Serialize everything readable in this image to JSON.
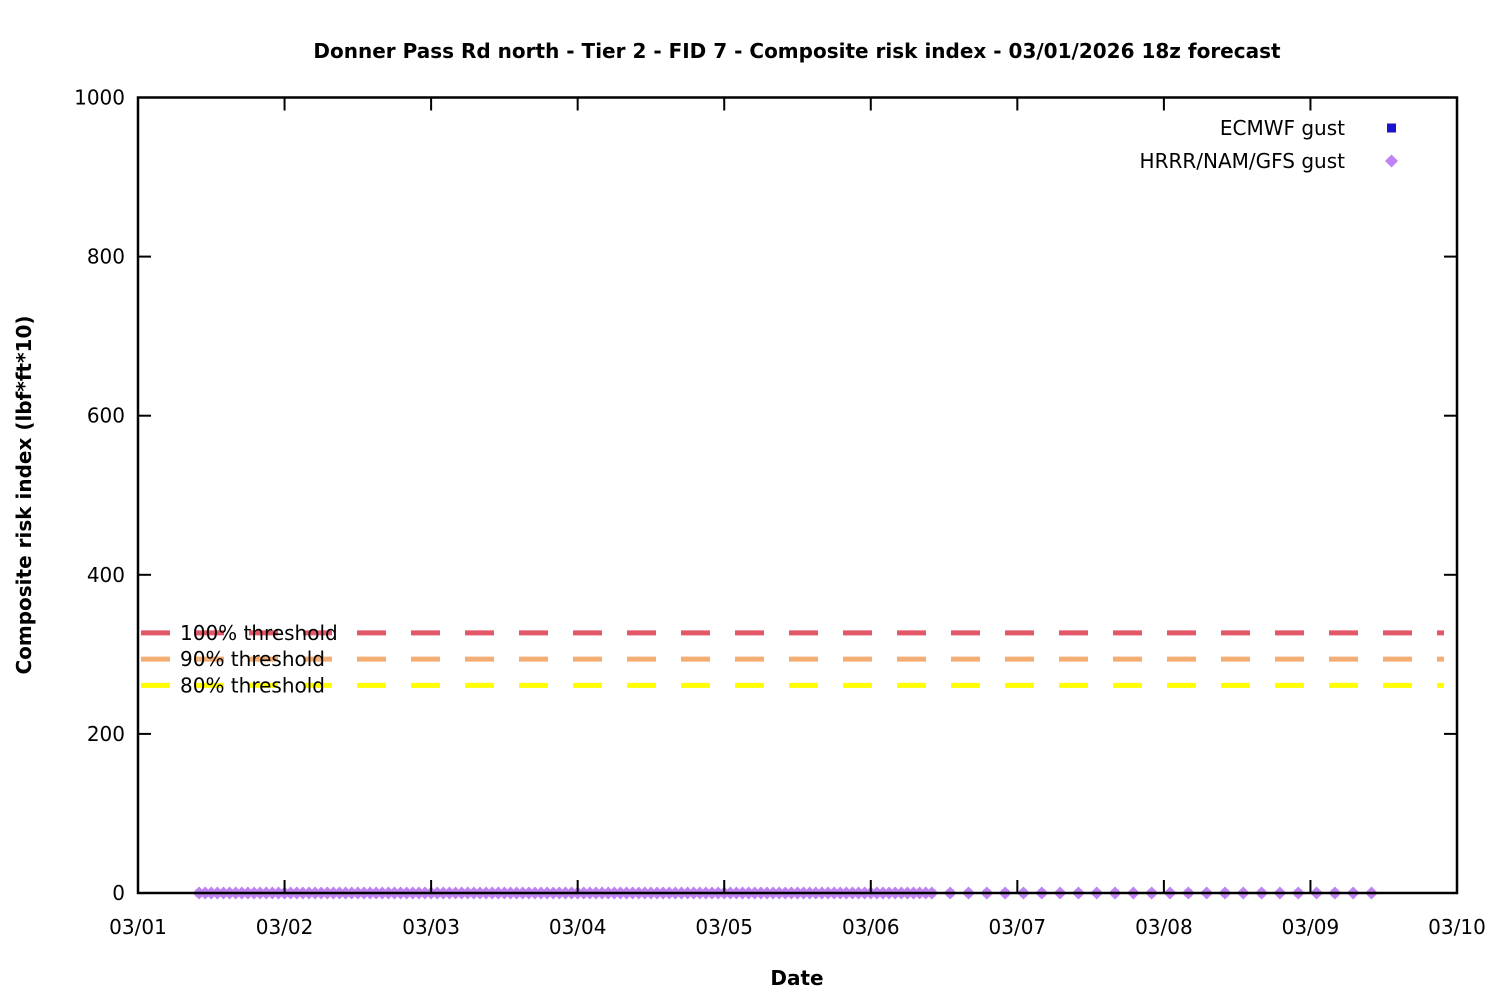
{
  "page": {
    "background_color": "#ffffff",
    "text_color": "#000000"
  },
  "chart_data": {
    "type": "scatter",
    "title": "Donner Pass Rd north - Tier 2 - FID 7 - Composite risk index - 03/01/2026 18z forecast",
    "xlabel": "Date",
    "ylabel": "Composite risk index (lbf*ft*10)",
    "x_tick_labels": [
      "03/01",
      "03/02",
      "03/03",
      "03/04",
      "03/05",
      "03/06",
      "03/07",
      "03/08",
      "03/09",
      "03/10"
    ],
    "x_range_days": [
      0,
      9
    ],
    "y_ticks": [
      0,
      200,
      400,
      600,
      800,
      1000
    ],
    "ylim": [
      0,
      1000
    ],
    "grid": false,
    "legend_position": "top-right-inside",
    "series": [
      {
        "name": "ECMWF gust",
        "marker": "square",
        "color": "#1d13cd",
        "note": "all plotted values are 0; hourly 03/01 10:00-03/06 10:00, 3-hourly to 03/07 04:00, 6-hourly to 03/09 04:00",
        "segments": [
          {
            "start_day": 0.4167,
            "end_day": 5.4167,
            "step_hours": 1,
            "value": 0
          },
          {
            "start_day": 5.5417,
            "end_day": 6.1667,
            "step_hours": 3,
            "value": 0
          },
          {
            "start_day": 6.4167,
            "end_day": 8.1667,
            "step_hours": 6,
            "value": 0
          }
        ]
      },
      {
        "name": "HRRR/NAM/GFS gust",
        "marker": "diamond",
        "color": "#bf83f3",
        "note": "all plotted values are 0; hourly 03/01 10:00-03/06 10:00, 3-hourly to 03/09 10:00",
        "segments": [
          {
            "start_day": 0.4167,
            "end_day": 5.4167,
            "step_hours": 1,
            "value": 0
          },
          {
            "start_day": 5.5417,
            "end_day": 8.4167,
            "step_hours": 3,
            "value": 0
          }
        ]
      }
    ],
    "thresholds": [
      {
        "label": "100% threshold",
        "value": 327,
        "color": "#e25868"
      },
      {
        "label": "90% threshold",
        "value": 294,
        "color": "#f4ad72"
      },
      {
        "label": "80% threshold",
        "value": 261,
        "color": "#ffff00"
      }
    ]
  }
}
